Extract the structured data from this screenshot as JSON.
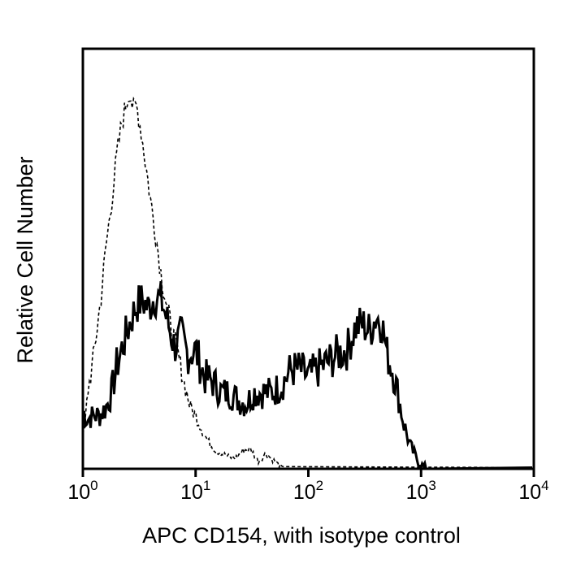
{
  "chart_data": {
    "type": "line",
    "title": "",
    "xlabel": "APC CD154, with isotype control",
    "ylabel": "Relative Cell Number",
    "x_scale": "log",
    "xlim": [
      1,
      10000
    ],
    "ylim": [
      0,
      1
    ],
    "grid": false,
    "legend": "none",
    "x_ticks": [
      {
        "base": "10",
        "exp": "0",
        "value": 1
      },
      {
        "base": "10",
        "exp": "1",
        "value": 10
      },
      {
        "base": "10",
        "exp": "2",
        "value": 100
      },
      {
        "base": "10",
        "exp": "3",
        "value": 1000
      },
      {
        "base": "10",
        "exp": "4",
        "value": 10000
      }
    ],
    "series": [
      {
        "style": "solid",
        "x": [
          1.0,
          1.1,
          1.25,
          1.4,
          1.6,
          1.8,
          2.0,
          2.3,
          2.6,
          3.0,
          3.4,
          3.8,
          4.3,
          5.0,
          5.7,
          6.5,
          7.5,
          8.5,
          10,
          12,
          14,
          17,
          20,
          24,
          28,
          33,
          40,
          48,
          58,
          70,
          85,
          100,
          120,
          150,
          180,
          220,
          260,
          300,
          350,
          400,
          450,
          500,
          560,
          620,
          700,
          800,
          900,
          1000,
          1100,
          1200
        ],
        "y": [
          0.15,
          0.13,
          0.14,
          0.14,
          0.16,
          0.2,
          0.27,
          0.33,
          0.38,
          0.43,
          0.44,
          0.42,
          0.45,
          0.44,
          0.38,
          0.32,
          0.35,
          0.3,
          0.31,
          0.24,
          0.23,
          0.2,
          0.2,
          0.18,
          0.17,
          0.2,
          0.2,
          0.2,
          0.22,
          0.26,
          0.26,
          0.24,
          0.26,
          0.28,
          0.3,
          0.31,
          0.37,
          0.38,
          0.36,
          0.4,
          0.38,
          0.3,
          0.26,
          0.2,
          0.12,
          0.06,
          0.03,
          0.01,
          0.003,
          0.0
        ]
      },
      {
        "style": "dashed",
        "x": [
          1.0,
          1.05,
          1.1,
          1.2,
          1.3,
          1.45,
          1.6,
          1.8,
          2.0,
          2.2,
          2.4,
          2.6,
          2.8,
          3.0,
          3.3,
          3.6,
          4.0,
          4.5,
          5.0,
          5.6,
          6.2,
          7.0,
          8.0,
          9.0,
          10,
          11.5,
          13,
          15,
          17,
          20,
          23,
          27,
          31,
          36,
          42,
          50,
          60
        ],
        "y": [
          0.08,
          0.12,
          0.2,
          0.26,
          0.34,
          0.45,
          0.58,
          0.7,
          0.82,
          0.9,
          0.95,
          0.99,
          0.94,
          0.95,
          0.88,
          0.8,
          0.7,
          0.6,
          0.5,
          0.42,
          0.36,
          0.3,
          0.22,
          0.16,
          0.14,
          0.1,
          0.07,
          0.05,
          0.04,
          0.03,
          0.03,
          0.05,
          0.05,
          0.02,
          0.04,
          0.02,
          0.0
        ]
      }
    ]
  }
}
